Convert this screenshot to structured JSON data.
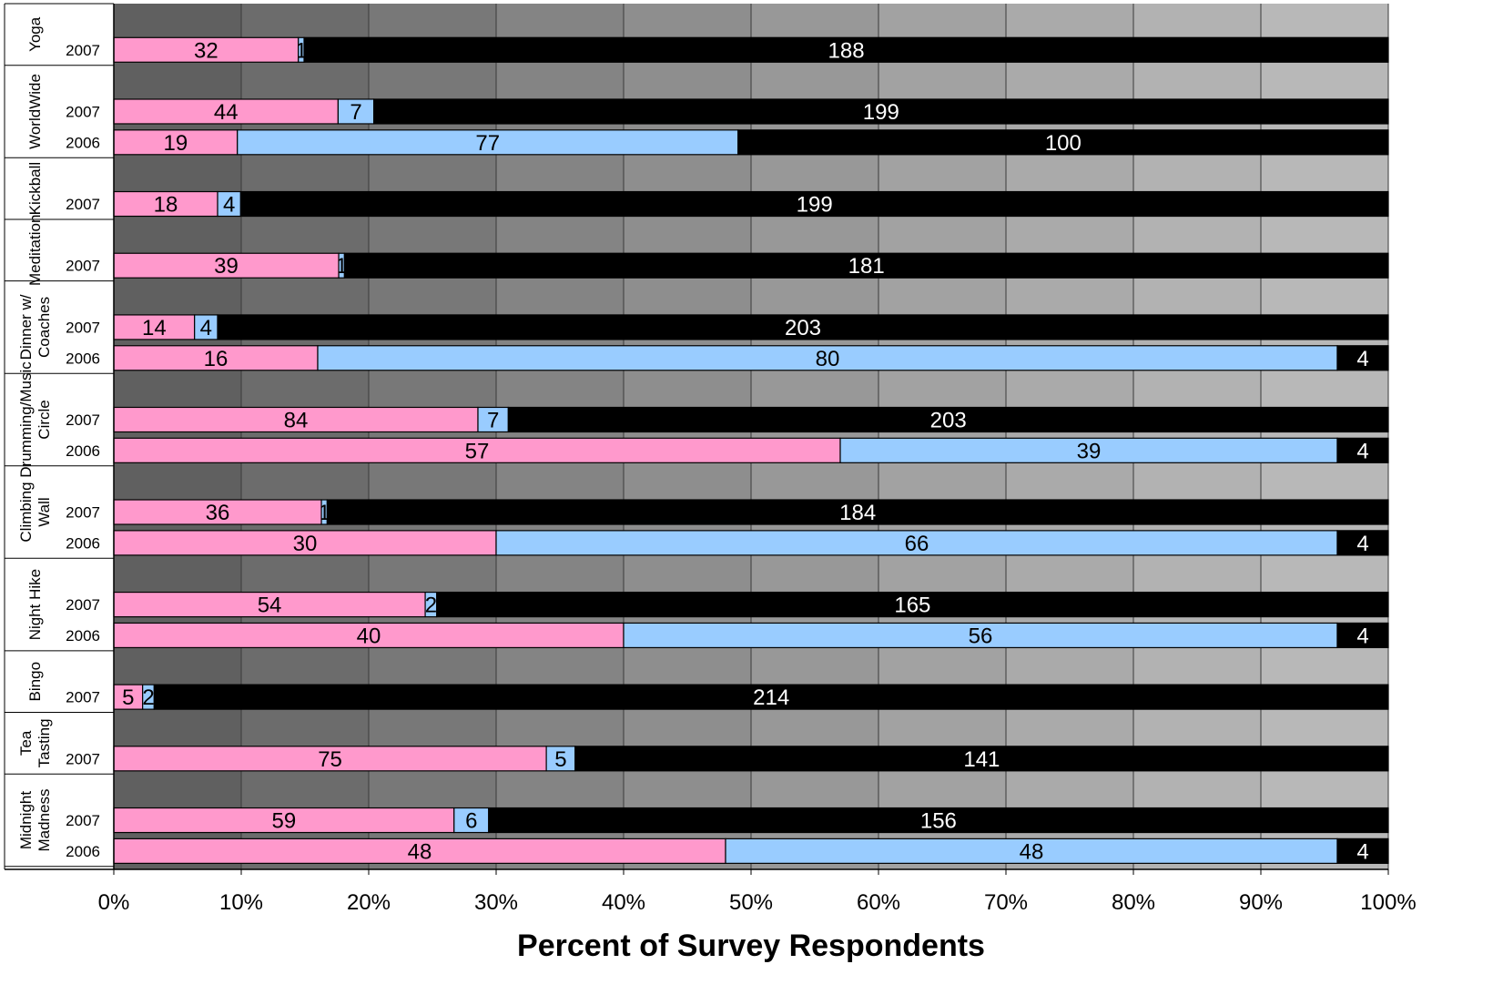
{
  "chart_data": {
    "type": "bar",
    "orientation": "horizontal",
    "stacked": "percent",
    "xlabel": "Percent of Survey Respondents",
    "ylabel": "",
    "xlim": [
      0,
      100
    ],
    "x_ticks": [
      "0%",
      "10%",
      "20%",
      "30%",
      "40%",
      "50%",
      "60%",
      "70%",
      "80%",
      "90%",
      "100%"
    ],
    "grid": true,
    "legend": "none",
    "colors": [
      "#ff99cc",
      "#99ccff",
      "#000000"
    ],
    "label_colors": [
      "#000000",
      "#000000",
      "#ffffff"
    ],
    "band_colors": [
      "#606060",
      "#6c6c6c",
      "#787878",
      "#848484",
      "#8e8e8e",
      "#989898",
      "#a2a2a2",
      "#aaaaaa",
      "#b2b2b2",
      "#b8b8b8"
    ],
    "groups": [
      {
        "name": "Yoga",
        "rows": [
          {
            "year": "2007",
            "values": [
              32,
              1,
              188
            ],
            "labels": [
              "32",
              "1",
              "188"
            ]
          }
        ]
      },
      {
        "name": "WorldWide",
        "rows": [
          {
            "year": "2007",
            "values": [
              44,
              7,
              199
            ],
            "labels": [
              "44",
              "7",
              "199"
            ]
          },
          {
            "year": "2006",
            "values": [
              19,
              77,
              100
            ],
            "labels": [
              "19",
              "77",
              "100"
            ]
          }
        ]
      },
      {
        "name": "Kickball",
        "rows": [
          {
            "year": "2007",
            "values": [
              18,
              4,
              199
            ],
            "labels": [
              "18",
              "4",
              "199"
            ]
          }
        ]
      },
      {
        "name": "Meditation",
        "rows": [
          {
            "year": "2007",
            "values": [
              39,
              1,
              181
            ],
            "labels": [
              "39",
              "1",
              "181"
            ]
          }
        ]
      },
      {
        "name": "Dinner w/ Coaches",
        "lines": [
          "Dinner w/",
          "Coaches"
        ],
        "rows": [
          {
            "year": "2007",
            "values": [
              14,
              4,
              203
            ],
            "labels": [
              "14",
              "4",
              "203"
            ]
          },
          {
            "year": "2006",
            "values": [
              16,
              80,
              4
            ],
            "labels": [
              "16",
              "80",
              "4"
            ]
          }
        ]
      },
      {
        "name": "Drumming/Music Circle",
        "lines": [
          "Drumming/Music",
          "Circle"
        ],
        "rows": [
          {
            "year": "2007",
            "values": [
              84,
              7,
              203
            ],
            "labels": [
              "84",
              "7",
              "203"
            ]
          },
          {
            "year": "2006",
            "values": [
              57,
              39,
              4
            ],
            "labels": [
              "57",
              "39",
              "4"
            ]
          }
        ]
      },
      {
        "name": "Climbing Wall",
        "lines": [
          "Climbing",
          "Wall"
        ],
        "rows": [
          {
            "year": "2007",
            "values": [
              36,
              1,
              184
            ],
            "labels": [
              "36",
              "1",
              "184"
            ]
          },
          {
            "year": "2006",
            "values": [
              30,
              66,
              4
            ],
            "labels": [
              "30",
              "66",
              "4"
            ]
          }
        ]
      },
      {
        "name": "Night Hike",
        "rows": [
          {
            "year": "2007",
            "values": [
              54,
              2,
              165
            ],
            "labels": [
              "54",
              "2",
              "165"
            ]
          },
          {
            "year": "2006",
            "values": [
              40,
              56,
              4
            ],
            "labels": [
              "40",
              "56",
              "4"
            ]
          }
        ]
      },
      {
        "name": "Bingo",
        "rows": [
          {
            "year": "2007",
            "values": [
              5,
              2,
              214
            ],
            "labels": [
              "5",
              "2",
              "214"
            ]
          }
        ]
      },
      {
        "name": "Tea Tasting",
        "lines": [
          "Tea",
          "Tasting"
        ],
        "rows": [
          {
            "year": "2007",
            "values": [
              75,
              5,
              141
            ],
            "labels": [
              "75",
              "5",
              "141"
            ]
          }
        ]
      },
      {
        "name": "Midnight Madness",
        "lines": [
          "Midnight",
          "Madness"
        ],
        "rows": [
          {
            "year": "2007",
            "values": [
              59,
              6,
              156
            ],
            "labels": [
              "59",
              "6",
              "156"
            ]
          },
          {
            "year": "2006",
            "values": [
              48,
              48,
              4
            ],
            "labels": [
              "48",
              "48",
              "4"
            ]
          }
        ]
      }
    ]
  }
}
